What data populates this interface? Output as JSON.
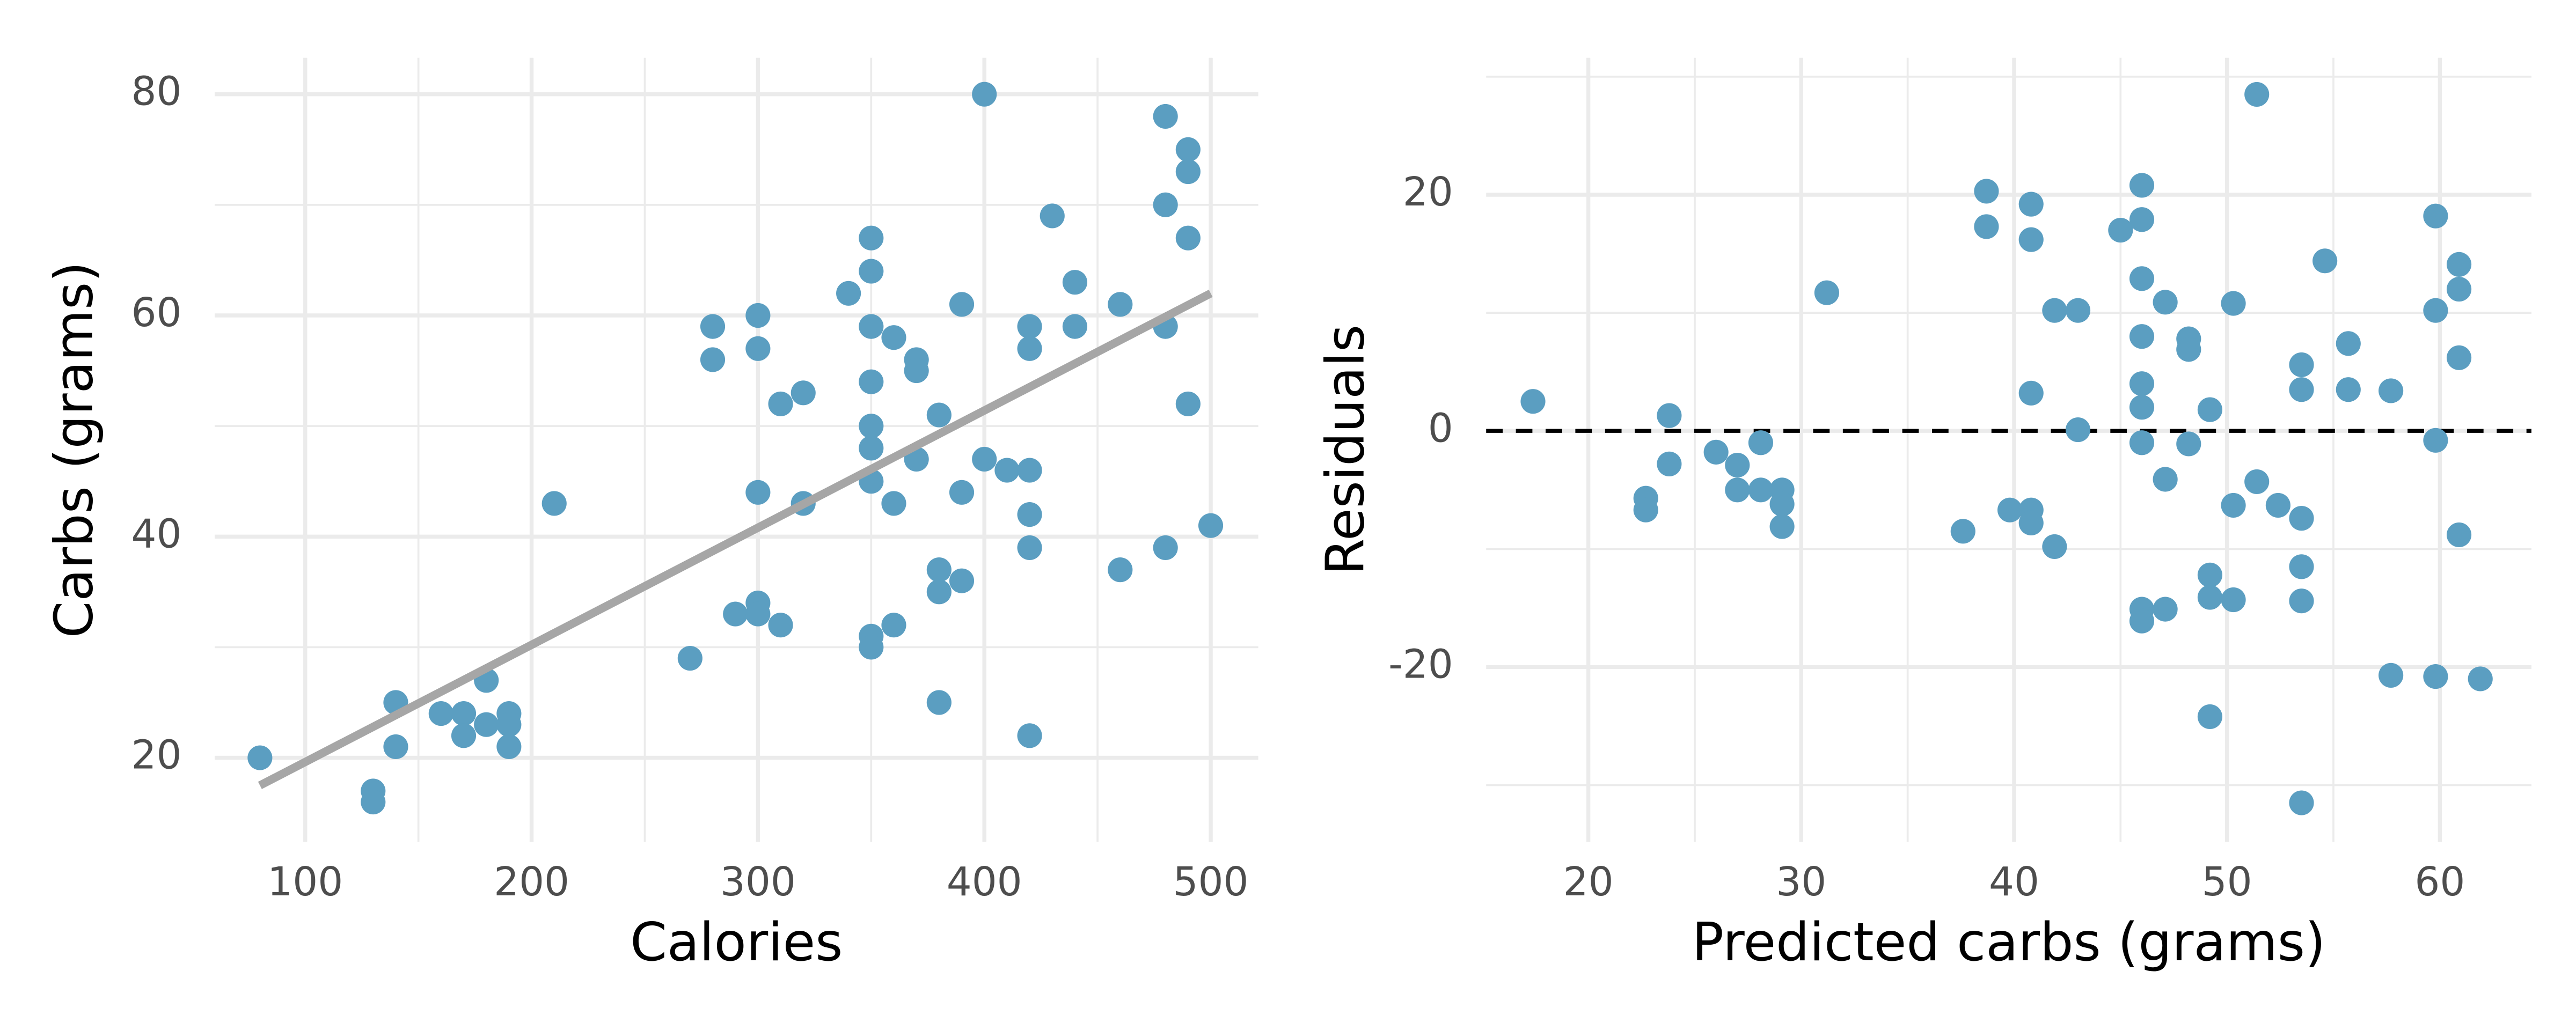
{
  "chart_data": [
    {
      "type": "scatter",
      "xlabel": "Calories",
      "ylabel": "Carbs (grams)",
      "xlim": [
        60,
        521
      ],
      "ylim": [
        12.4,
        83.3
      ],
      "xticks": [
        100,
        200,
        300,
        400,
        500
      ],
      "yticks": [
        20,
        40,
        60,
        80
      ],
      "xminorticks": [
        150,
        250,
        350,
        450
      ],
      "yminorticks": [
        30,
        50,
        70
      ],
      "grid": true,
      "color": "#5b9ec1",
      "x": [
        80,
        130,
        130,
        140,
        140,
        160,
        170,
        170,
        180,
        180,
        190,
        190,
        190,
        210,
        270,
        280,
        280,
        290,
        300,
        300,
        300,
        300,
        300,
        310,
        310,
        320,
        320,
        340,
        350,
        350,
        350,
        350,
        350,
        350,
        350,
        350,
        350,
        360,
        360,
        360,
        370,
        370,
        370,
        380,
        380,
        380,
        380,
        390,
        390,
        390,
        400,
        400,
        410,
        420,
        420,
        420,
        420,
        420,
        420,
        430,
        440,
        440,
        460,
        460,
        480,
        480,
        480,
        480,
        490,
        490,
        490,
        490,
        500
      ],
      "y": [
        20,
        17,
        16,
        25,
        21,
        24,
        24,
        22,
        27,
        23,
        24,
        23,
        21,
        43,
        29,
        59,
        56,
        33,
        60,
        57,
        44,
        34,
        33,
        52,
        32,
        53,
        43,
        62,
        67,
        64,
        59,
        54,
        50,
        48,
        45,
        31,
        30,
        58,
        43,
        32,
        56,
        55,
        47,
        51,
        37,
        35,
        25,
        61,
        44,
        36,
        80,
        47,
        46,
        59,
        57,
        46,
        42,
        39,
        22,
        69,
        63,
        59,
        61,
        37,
        78,
        70,
        59,
        39,
        75,
        73,
        67,
        52,
        41
      ],
      "fit": {
        "x": [
          80,
          500
        ],
        "y": [
          17.5,
          62
        ],
        "color": "#a6a6a6"
      }
    },
    {
      "type": "scatter",
      "xlabel": "Predicted carbs (grams)",
      "ylabel": "Residuals",
      "xlim": [
        15.2,
        64.3
      ],
      "ylim": [
        -34.8,
        31.6
      ],
      "xticks": [
        20,
        30,
        40,
        50,
        60
      ],
      "yticks": [
        -20,
        0,
        20
      ],
      "xminorticks": [
        25,
        35,
        45,
        55
      ],
      "yminorticks": [
        -30,
        -10,
        10,
        30
      ],
      "grid": true,
      "color": "#5b9ec1",
      "hline": 0,
      "x": [
        17.4,
        22.7,
        22.7,
        23.8,
        23.8,
        26,
        27,
        27,
        28.1,
        28.1,
        29.1,
        29.1,
        29.1,
        31.2,
        37.6,
        38.7,
        38.7,
        39.8,
        40.8,
        40.8,
        40.8,
        40.8,
        40.8,
        41.9,
        41.9,
        43,
        43,
        45,
        46,
        46,
        46,
        46,
        46,
        46,
        46,
        46,
        46,
        47.1,
        47.1,
        47.1,
        48.2,
        48.2,
        48.2,
        49.2,
        49.2,
        49.2,
        49.2,
        50.3,
        50.3,
        50.3,
        51.4,
        51.4,
        52.4,
        53.5,
        53.5,
        53.5,
        53.5,
        53.5,
        53.5,
        54.6,
        55.7,
        55.7,
        57.7,
        57.7,
        59.8,
        59.8,
        59.8,
        59.8,
        60.9,
        60.9,
        60.9,
        60.9,
        61.9
      ],
      "y": [
        2.5,
        -5.7,
        -6.7,
        1.3,
        -2.8,
        -1.8,
        -2.9,
        -5,
        -1,
        -5,
        -5,
        -6.2,
        -8.1,
        11.7,
        -8.5,
        20.3,
        17.3,
        -6.7,
        19.2,
        16.2,
        3.2,
        -6.7,
        -7.8,
        10.2,
        -9.8,
        10.2,
        0.1,
        17,
        20.8,
        17.9,
        12.9,
        8,
        4,
        2,
        -1,
        -15.1,
        -16.1,
        10.9,
        -4.1,
        -15.1,
        7.8,
        6.9,
        -1.1,
        1.8,
        -12.2,
        -14.1,
        -24.2,
        10.8,
        -6.3,
        -14.3,
        28.5,
        -4.3,
        -6.3,
        5.6,
        3.5,
        -7.4,
        -11.5,
        -14.4,
        -31.5,
        14.4,
        7.4,
        3.5,
        3.4,
        -20.7,
        18.2,
        10.2,
        -0.8,
        -20.8,
        14.1,
        12,
        6.2,
        -8.8,
        -21
      ]
    }
  ]
}
